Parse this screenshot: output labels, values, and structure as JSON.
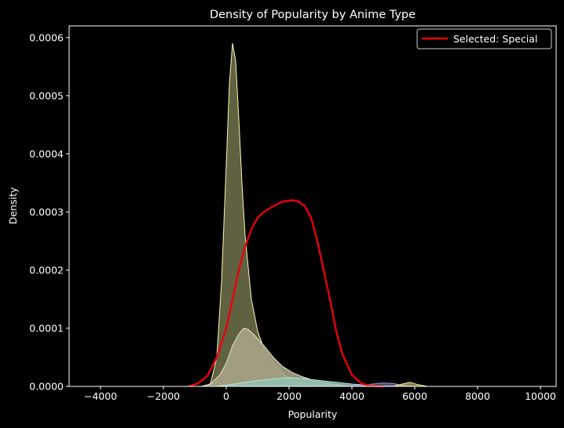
{
  "chart_data": {
    "type": "area",
    "title": "Density of Popularity by Anime Type",
    "xlabel": "Popularity",
    "ylabel": "Density",
    "xlim": [
      -5000,
      10500
    ],
    "ylim": [
      0,
      0.00062
    ],
    "xticks": [
      -4000,
      -2000,
      0,
      2000,
      4000,
      6000,
      8000,
      10000
    ],
    "xtick_labels": [
      "−4000",
      "−2000",
      "0",
      "2000",
      "4000",
      "6000",
      "8000",
      "10000"
    ],
    "yticks": [
      0,
      0.0001,
      0.0002,
      0.0003,
      0.0004,
      0.0005,
      0.0006
    ],
    "ytick_labels": [
      "0.0000",
      "0.0001",
      "0.0002",
      "0.0003",
      "0.0004",
      "0.0005",
      "0.0006"
    ],
    "grid": false,
    "legend": {
      "position": "top-right",
      "entries": [
        "Selected: Special"
      ]
    },
    "series": [
      {
        "fill": "#6a6b48",
        "line": "#fbf8b0",
        "fill_opacity": 0.9,
        "filled": true,
        "x": [
          -700,
          -500,
          -300,
          -150,
          0,
          100,
          200,
          300,
          400,
          500,
          600,
          800,
          1000,
          1200,
          1500,
          1800,
          2000,
          2200,
          2500,
          3000,
          3500,
          4000,
          4500,
          5000
        ],
        "y": [
          0,
          5e-06,
          5e-05,
          0.00018,
          0.00038,
          0.00052,
          0.00059,
          0.00056,
          0.00046,
          0.00035,
          0.00026,
          0.00015,
          9.5e-05,
          6.5e-05,
          4e-05,
          2.2e-05,
          1.4e-05,
          9e-06,
          6e-06,
          4e-06,
          2e-06,
          1e-06,
          5e-07,
          0
        ]
      },
      {
        "fill": "#a8a488",
        "line": "#e6e2c8",
        "fill_opacity": 0.9,
        "filled": true,
        "x": [
          -800,
          -500,
          -200,
          0,
          200,
          400,
          550,
          700,
          900,
          1200,
          1500,
          1800,
          2100,
          2400,
          2800,
          3200,
          3600,
          4000,
          4500
        ],
        "y": [
          0,
          4e-06,
          2e-05,
          4e-05,
          7e-05,
          9e-05,
          0.0001,
          9.8e-05,
          8.8e-05,
          7e-05,
          5e-05,
          3.4e-05,
          2.4e-05,
          1.7e-05,
          1e-05,
          6e-06,
          3e-06,
          1e-06,
          0
        ]
      },
      {
        "fill": "#8fc7b9",
        "line": "#b8e4d8",
        "fill_opacity": 0.75,
        "filled": true,
        "x": [
          -300,
          0,
          500,
          1000,
          1500,
          2000,
          2500,
          3000,
          3500,
          4000,
          4500,
          5000,
          5500,
          6000
        ],
        "y": [
          0,
          2e-06,
          6e-06,
          1e-05,
          1.3e-05,
          1.5e-05,
          1.3e-05,
          1e-05,
          7e-06,
          4e-06,
          2e-06,
          1e-06,
          5e-07,
          0
        ]
      },
      {
        "fill": "#7a79b8",
        "line": "#9a99d4",
        "fill_opacity": 0.6,
        "filled": true,
        "x": [
          3500,
          4000,
          4500,
          5000,
          5300,
          5600,
          6000
        ],
        "y": [
          0,
          1e-06,
          3e-06,
          6e-06,
          5e-06,
          2e-06,
          0
        ]
      },
      {
        "fill": "#d8d47a",
        "line": "#f2ee98",
        "fill_opacity": 0.6,
        "filled": true,
        "x": [
          5300,
          5600,
          5850,
          6100,
          6400
        ],
        "y": [
          0,
          4e-06,
          7e-06,
          3e-06,
          0
        ]
      },
      {
        "name": "Selected: Special",
        "line": "#e8000b",
        "filled": false,
        "line_width": 2.4,
        "x": [
          -1200,
          -900,
          -600,
          -300,
          0,
          200,
          400,
          600,
          800,
          1000,
          1200,
          1500,
          1800,
          2100,
          2300,
          2500,
          2700,
          2900,
          3100,
          3300,
          3500,
          3700,
          4000,
          4300,
          4600,
          5000
        ],
        "y": [
          0,
          5e-06,
          1.8e-05,
          5e-05,
          0.0001,
          0.00015,
          0.0002,
          0.00024,
          0.00027,
          0.00029,
          0.0003,
          0.00031,
          0.000318,
          0.00032,
          0.000318,
          0.00031,
          0.00029,
          0.00025,
          0.0002,
          0.00015,
          9.5e-05,
          5.5e-05,
          2e-05,
          5e-06,
          1e-06,
          0
        ]
      }
    ]
  }
}
